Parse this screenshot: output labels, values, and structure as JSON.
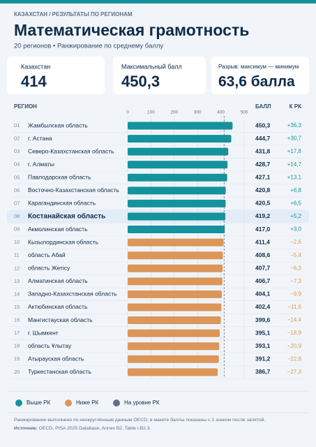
{
  "header": {
    "breadcrumb": "КАЗАХСТАН  /  РЕЗУЛЬТАТЫ ПО РЕГИОНАМ",
    "title": "Математическая грамотность",
    "subtitle": "20 регионов • Ранжирование по среднему баллу"
  },
  "cards": [
    {
      "label": "Казахстан",
      "value": "414"
    },
    {
      "label": "Максимальный балл",
      "value": "450,3"
    },
    {
      "label": "Разрыв: максимум — минимум",
      "value": "63,6 балла"
    }
  ],
  "chart_data": {
    "type": "bar",
    "orientation": "horizontal",
    "columns": {
      "region": "РЕГИОН",
      "score": "БАЛЛ",
      "diff": "К РК"
    },
    "ranks": [
      "01",
      "02",
      "03",
      "04",
      "05",
      "06",
      "07",
      "08",
      "09",
      "10",
      "11",
      "12",
      "13",
      "14",
      "15",
      "16",
      "17",
      "18",
      "19",
      "20"
    ],
    "categories": [
      "Жамбылская область",
      "г. Астана",
      "Северо-Казахстанская область",
      "г. Алматы",
      "Павлодарская область",
      "Восточно-Казахстанская область",
      "Карагандинская область",
      "Костанайская область",
      "Акмолинская область",
      "Кызылординская область",
      "область Абай",
      "область Жетісу",
      "Алматинская область",
      "Западно-Казахстанская область",
      "Актюбинская область",
      "Мангистауская область",
      "г. Шымкент",
      "область Ұлытау",
      "Атырауская область",
      "Туркестанская область"
    ],
    "values": [
      450.3,
      444.7,
      431.8,
      428.7,
      427.1,
      420.8,
      420.5,
      419.2,
      417.0,
      411.4,
      408.6,
      407.7,
      406.7,
      404.1,
      402.4,
      399.6,
      395.1,
      393.1,
      391.2,
      386.7
    ],
    "value_labels": [
      "450,3",
      "444,7",
      "431,8",
      "428,7",
      "427,1",
      "420,8",
      "420,5",
      "419,2",
      "417,0",
      "411,4",
      "408,6",
      "407,7",
      "406,7",
      "404,1",
      "402,4",
      "399,6",
      "395,1",
      "393,1",
      "391,2",
      "386,7"
    ],
    "diffs": [
      36.3,
      30.7,
      17.8,
      14.7,
      13.1,
      6.8,
      6.5,
      5.2,
      3.0,
      -2.6,
      -5.4,
      -6.3,
      -7.3,
      -9.9,
      -11.6,
      -14.4,
      -18.9,
      -20.9,
      -22.8,
      -27.3
    ],
    "diff_labels": [
      "+36,3",
      "+30,7",
      "+17,8",
      "+14,7",
      "+13,1",
      "+6,8",
      "+6,5",
      "+5,2",
      "+3,0",
      "−2,6",
      "−5,4",
      "−6,3",
      "−7,3",
      "−9,9",
      "−11,6",
      "−14,4",
      "−18,9",
      "−20,9",
      "−22,8",
      "−27,3"
    ],
    "groups": [
      {
        "name": "Выше РК",
        "color": "#14939c"
      },
      {
        "name": "Ниже РК",
        "color": "#dc9659"
      },
      {
        "name": "На уровне РК",
        "color": "#5e7088"
      }
    ],
    "group_of": [
      0,
      0,
      0,
      0,
      0,
      0,
      0,
      0,
      0,
      1,
      1,
      1,
      1,
      1,
      1,
      1,
      1,
      1,
      1,
      1
    ],
    "highlight": 7,
    "reference_line": 414,
    "xlim": [
      0,
      500
    ],
    "xticks": [
      0,
      100,
      200,
      300,
      400,
      500
    ],
    "grid": true
  },
  "footnote": {
    "note": "Ранжирование выполнено по неокруглённым данным OECD; в макете баллы показаны с 1 знаком после запятой.",
    "source_label": "Источник:",
    "source": " OECD, PISA 2025 Database, Annex B2, Table I.B2.3."
  }
}
